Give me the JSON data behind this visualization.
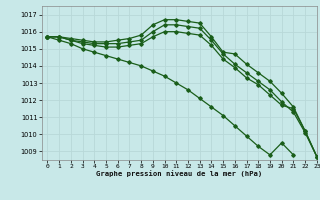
{
  "background_color": "#c8e8e8",
  "grid_color": "#b8d8d8",
  "line_color": "#1a5e1a",
  "xlabel": "Graphe pression niveau de la mer (hPa)",
  "ylim": [
    1008.5,
    1017.5
  ],
  "xlim": [
    -0.5,
    23
  ],
  "yticks": [
    1009,
    1010,
    1011,
    1012,
    1013,
    1014,
    1015,
    1016,
    1017
  ],
  "xticks": [
    0,
    1,
    2,
    3,
    4,
    5,
    6,
    7,
    8,
    9,
    10,
    11,
    12,
    13,
    14,
    15,
    16,
    17,
    18,
    19,
    20,
    21,
    22,
    23
  ],
  "series": [
    {
      "x": [
        0,
        1,
        2,
        3,
        4,
        5,
        6,
        7,
        8,
        9,
        10,
        11,
        12,
        13,
        14,
        15,
        16,
        17,
        18,
        19,
        20,
        21,
        22,
        23
      ],
      "y": [
        1015.7,
        1015.7,
        1015.6,
        1015.5,
        1015.4,
        1015.4,
        1015.5,
        1015.6,
        1015.8,
        1016.4,
        1016.7,
        1016.7,
        1016.6,
        1016.5,
        1015.7,
        1014.8,
        1014.7,
        1014.1,
        1013.6,
        1013.1,
        1012.4,
        1011.6,
        1010.2,
        1008.7
      ]
    },
    {
      "x": [
        0,
        1,
        2,
        3,
        4,
        5,
        6,
        7,
        8,
        9,
        10,
        11,
        12,
        13,
        14,
        15,
        16,
        17,
        18,
        19,
        20,
        21,
        22,
        23
      ],
      "y": [
        1015.7,
        1015.7,
        1015.5,
        1015.4,
        1015.3,
        1015.3,
        1015.3,
        1015.4,
        1015.5,
        1016.0,
        1016.4,
        1016.4,
        1016.3,
        1016.2,
        1015.5,
        1014.7,
        1014.1,
        1013.6,
        1013.1,
        1012.6,
        1011.9,
        1011.3,
        1010.1,
        1008.7
      ]
    },
    {
      "x": [
        0,
        1,
        2,
        3,
        4,
        5,
        6,
        7,
        8,
        9,
        10,
        11,
        12,
        13,
        14,
        15,
        16,
        17,
        18,
        19,
        20,
        21,
        22,
        23
      ],
      "y": [
        1015.7,
        1015.7,
        1015.5,
        1015.3,
        1015.2,
        1015.1,
        1015.1,
        1015.2,
        1015.3,
        1015.7,
        1016.0,
        1016.0,
        1015.9,
        1015.8,
        1015.2,
        1014.4,
        1013.9,
        1013.3,
        1012.9,
        1012.3,
        1011.7,
        1011.5,
        1010.2,
        1008.7
      ]
    },
    {
      "x": [
        0,
        1,
        2,
        3,
        4,
        5,
        6,
        7,
        8,
        9,
        10,
        11,
        12,
        13,
        14,
        15,
        16,
        17,
        18,
        19,
        20,
        21
      ],
      "y": [
        1015.7,
        1015.5,
        1015.3,
        1015.0,
        1014.8,
        1014.6,
        1014.4,
        1014.2,
        1014.0,
        1013.7,
        1013.4,
        1013.0,
        1012.6,
        1012.1,
        1011.6,
        1011.1,
        1010.5,
        1009.9,
        1009.3,
        1008.8,
        1009.5,
        1008.8
      ]
    }
  ]
}
